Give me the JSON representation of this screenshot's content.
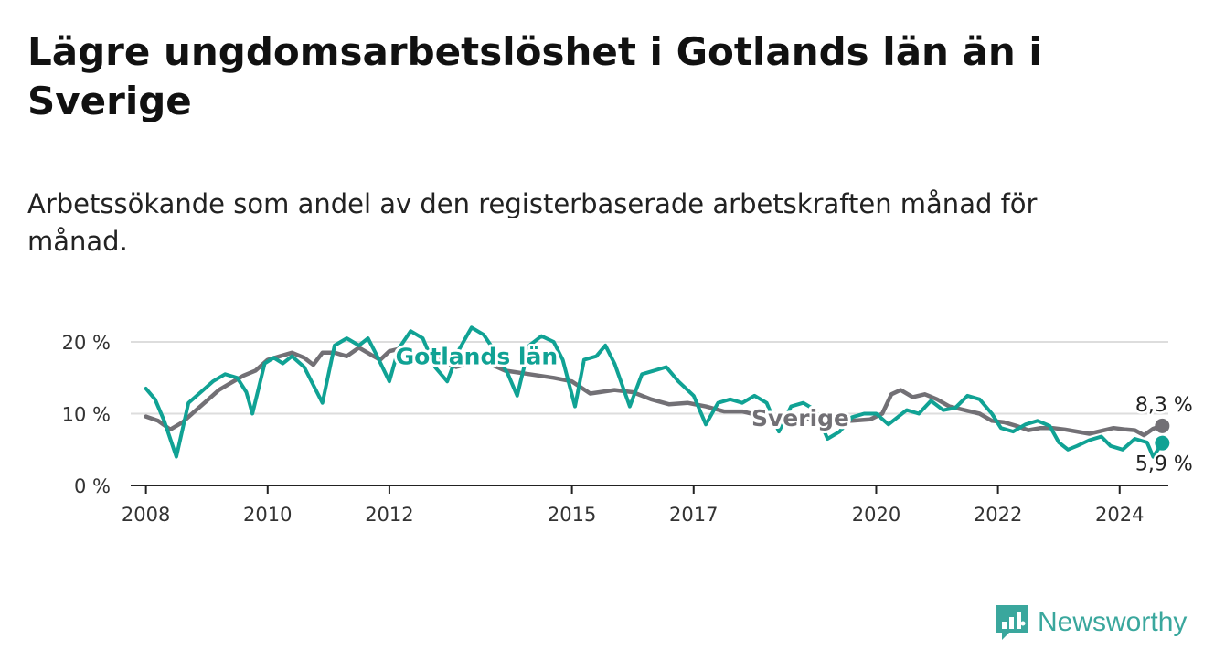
{
  "header": {
    "title": "Lägre ungdomsarbetslöshet i Gotlands län än i Sverige",
    "subtitle": "Arbetssökande som andel av den registerbaserade arbetskraften månad för månad."
  },
  "brand": {
    "name": "Newsworthy",
    "color": "#3aa79d",
    "icon": "newsworthy-chart-icon"
  },
  "colors": {
    "gotland": "#10a294",
    "sverige": "#727075",
    "grid": "#dddddd",
    "axis": "#222222"
  },
  "chart_data": {
    "type": "line",
    "x_unit": "year",
    "xlim": [
      2007.75,
      2024.8
    ],
    "ylim": [
      0,
      20
    ],
    "yticks": [
      {
        "value": 0,
        "label": "0 %"
      },
      {
        "value": 10,
        "label": "10 %"
      },
      {
        "value": 20,
        "label": "20 %"
      }
    ],
    "xticks": [
      {
        "value": 2008,
        "label": "2008"
      },
      {
        "value": 2010,
        "label": "2010"
      },
      {
        "value": 2012,
        "label": "2012"
      },
      {
        "value": 2015,
        "label": "2015"
      },
      {
        "value": 2017,
        "label": "2017"
      },
      {
        "value": 2020,
        "label": "2020"
      },
      {
        "value": 2022,
        "label": "2022"
      },
      {
        "value": 2024,
        "label": "2024"
      }
    ],
    "grid": true,
    "series": [
      {
        "name": "Sverige",
        "color": "#727075",
        "label_at": [
          2017.95,
          8.3
        ],
        "end_label": "8,3 %",
        "points": [
          [
            2008.0,
            9.6
          ],
          [
            2008.2,
            9.0
          ],
          [
            2008.4,
            7.8
          ],
          [
            2008.6,
            8.8
          ],
          [
            2008.8,
            10.3
          ],
          [
            2009.0,
            11.8
          ],
          [
            2009.2,
            13.3
          ],
          [
            2009.4,
            14.3
          ],
          [
            2009.6,
            15.3
          ],
          [
            2009.8,
            16.0
          ],
          [
            2010.0,
            17.5
          ],
          [
            2010.2,
            18.0
          ],
          [
            2010.4,
            18.5
          ],
          [
            2010.6,
            17.8
          ],
          [
            2010.75,
            16.8
          ],
          [
            2010.9,
            18.5
          ],
          [
            2011.1,
            18.5
          ],
          [
            2011.3,
            18.0
          ],
          [
            2011.5,
            19.2
          ],
          [
            2011.7,
            18.2
          ],
          [
            2011.85,
            17.5
          ],
          [
            2012.0,
            18.7
          ],
          [
            2012.15,
            19.0
          ],
          [
            2012.3,
            18.5
          ],
          [
            2012.5,
            17.8
          ],
          [
            2012.8,
            17.5
          ],
          [
            2013.1,
            16.5
          ],
          [
            2013.5,
            17.5
          ],
          [
            2013.9,
            16.0
          ],
          [
            2014.3,
            15.5
          ],
          [
            2014.7,
            15.0
          ],
          [
            2015.0,
            14.5
          ],
          [
            2015.3,
            12.8
          ],
          [
            2015.7,
            13.3
          ],
          [
            2016.0,
            13.0
          ],
          [
            2016.3,
            12.0
          ],
          [
            2016.6,
            11.3
          ],
          [
            2016.9,
            11.5
          ],
          [
            2017.2,
            11.0
          ],
          [
            2017.5,
            10.3
          ],
          [
            2017.8,
            10.3
          ],
          [
            2018.1,
            9.7
          ],
          [
            2018.4,
            9.3
          ],
          [
            2018.7,
            9.2
          ],
          [
            2019.0,
            9.3
          ],
          [
            2019.3,
            9.0
          ],
          [
            2019.6,
            9.0
          ],
          [
            2019.9,
            9.2
          ],
          [
            2020.1,
            10.0
          ],
          [
            2020.25,
            12.7
          ],
          [
            2020.4,
            13.3
          ],
          [
            2020.6,
            12.3
          ],
          [
            2020.8,
            12.7
          ],
          [
            2021.0,
            12.0
          ],
          [
            2021.2,
            11.0
          ],
          [
            2021.45,
            10.5
          ],
          [
            2021.7,
            10.0
          ],
          [
            2021.9,
            9.0
          ],
          [
            2022.1,
            8.8
          ],
          [
            2022.3,
            8.3
          ],
          [
            2022.5,
            7.7
          ],
          [
            2022.7,
            8.0
          ],
          [
            2022.9,
            8.0
          ],
          [
            2023.1,
            7.8
          ],
          [
            2023.3,
            7.5
          ],
          [
            2023.5,
            7.2
          ],
          [
            2023.7,
            7.6
          ],
          [
            2023.9,
            8.0
          ],
          [
            2024.1,
            7.8
          ],
          [
            2024.25,
            7.7
          ],
          [
            2024.4,
            7.0
          ],
          [
            2024.55,
            7.9
          ],
          [
            2024.7,
            8.3
          ]
        ]
      },
      {
        "name": "Gotlands län",
        "color": "#10a294",
        "label_at": [
          2012.1,
          16.9
        ],
        "end_label": "5,9 %",
        "points": [
          [
            2008.0,
            13.5
          ],
          [
            2008.15,
            12.0
          ],
          [
            2008.3,
            9.0
          ],
          [
            2008.5,
            4.0
          ],
          [
            2008.7,
            11.5
          ],
          [
            2008.9,
            13.0
          ],
          [
            2009.1,
            14.5
          ],
          [
            2009.3,
            15.5
          ],
          [
            2009.5,
            15.0
          ],
          [
            2009.65,
            13.0
          ],
          [
            2009.75,
            10.0
          ],
          [
            2009.95,
            17.0
          ],
          [
            2010.1,
            17.8
          ],
          [
            2010.25,
            17.0
          ],
          [
            2010.4,
            18.0
          ],
          [
            2010.6,
            16.5
          ],
          [
            2010.75,
            14.0
          ],
          [
            2010.9,
            11.5
          ],
          [
            2011.1,
            19.5
          ],
          [
            2011.3,
            20.5
          ],
          [
            2011.5,
            19.5
          ],
          [
            2011.65,
            20.5
          ],
          [
            2011.8,
            18.0
          ],
          [
            2012.0,
            14.5
          ],
          [
            2012.15,
            19.0
          ],
          [
            2012.35,
            21.5
          ],
          [
            2012.55,
            20.5
          ],
          [
            2012.75,
            16.5
          ],
          [
            2012.95,
            14.5
          ],
          [
            2013.15,
            19.0
          ],
          [
            2013.35,
            22.0
          ],
          [
            2013.55,
            21.0
          ],
          [
            2013.75,
            18.5
          ],
          [
            2013.95,
            15.5
          ],
          [
            2014.1,
            12.5
          ],
          [
            2014.3,
            19.5
          ],
          [
            2014.5,
            20.8
          ],
          [
            2014.7,
            20.0
          ],
          [
            2014.85,
            17.5
          ],
          [
            2015.05,
            11.0
          ],
          [
            2015.2,
            17.5
          ],
          [
            2015.4,
            18.0
          ],
          [
            2015.55,
            19.5
          ],
          [
            2015.7,
            17.0
          ],
          [
            2015.95,
            11.0
          ],
          [
            2016.15,
            15.5
          ],
          [
            2016.35,
            16.0
          ],
          [
            2016.55,
            16.5
          ],
          [
            2016.75,
            14.5
          ],
          [
            2017.0,
            12.5
          ],
          [
            2017.2,
            8.5
          ],
          [
            2017.4,
            11.5
          ],
          [
            2017.6,
            12.0
          ],
          [
            2017.8,
            11.5
          ],
          [
            2018.0,
            12.5
          ],
          [
            2018.2,
            11.5
          ],
          [
            2018.4,
            7.5
          ],
          [
            2018.6,
            11.0
          ],
          [
            2018.8,
            11.5
          ],
          [
            2019.0,
            10.5
          ],
          [
            2019.2,
            6.5
          ],
          [
            2019.4,
            7.5
          ],
          [
            2019.6,
            9.5
          ],
          [
            2019.8,
            10.0
          ],
          [
            2020.0,
            10.0
          ],
          [
            2020.2,
            8.5
          ],
          [
            2020.35,
            9.5
          ],
          [
            2020.5,
            10.5
          ],
          [
            2020.7,
            10.0
          ],
          [
            2020.9,
            11.8
          ],
          [
            2021.1,
            10.5
          ],
          [
            2021.3,
            10.8
          ],
          [
            2021.5,
            12.5
          ],
          [
            2021.7,
            12.0
          ],
          [
            2021.9,
            10.0
          ],
          [
            2022.05,
            8.0
          ],
          [
            2022.25,
            7.5
          ],
          [
            2022.45,
            8.5
          ],
          [
            2022.65,
            9.0
          ],
          [
            2022.85,
            8.3
          ],
          [
            2023.0,
            6.0
          ],
          [
            2023.15,
            5.0
          ],
          [
            2023.3,
            5.5
          ],
          [
            2023.5,
            6.3
          ],
          [
            2023.7,
            6.8
          ],
          [
            2023.85,
            5.5
          ],
          [
            2024.05,
            5.0
          ],
          [
            2024.25,
            6.5
          ],
          [
            2024.45,
            6.0
          ],
          [
            2024.55,
            4.0
          ],
          [
            2024.7,
            5.9
          ]
        ]
      }
    ]
  }
}
